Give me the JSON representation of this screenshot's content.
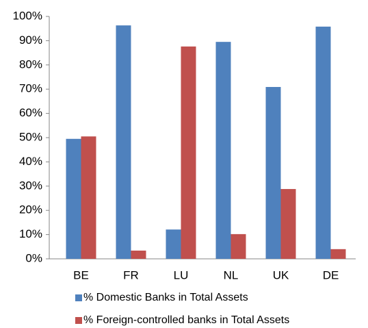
{
  "chart_data": {
    "type": "bar",
    "categories": [
      "BE",
      "FR",
      "LU",
      "NL",
      "UK",
      "DE"
    ],
    "series": [
      {
        "name": "% Domestic Banks in Total Assets",
        "color": "#4f81bd",
        "values": [
          49.5,
          96.3,
          12.1,
          89.5,
          70.9,
          95.8
        ]
      },
      {
        "name": "% Foreign-controlled banks in Total Assets",
        "color": "#c0504d",
        "values": [
          50.5,
          3.4,
          87.6,
          10.2,
          28.8,
          4.0
        ]
      }
    ],
    "ylim": [
      0,
      100
    ],
    "yticks": [
      {
        "value": 0,
        "label": "0%"
      },
      {
        "value": 10,
        "label": "10%"
      },
      {
        "value": 20,
        "label": "20%"
      },
      {
        "value": 30,
        "label": "30%"
      },
      {
        "value": 40,
        "label": "40%"
      },
      {
        "value": 50,
        "label": "50%"
      },
      {
        "value": 60,
        "label": "60%"
      },
      {
        "value": 70,
        "label": "70%"
      },
      {
        "value": 80,
        "label": "80%"
      },
      {
        "value": 90,
        "label": "90%"
      },
      {
        "value": 100,
        "label": "100%"
      }
    ],
    "grid": false,
    "legend": "bottom"
  }
}
